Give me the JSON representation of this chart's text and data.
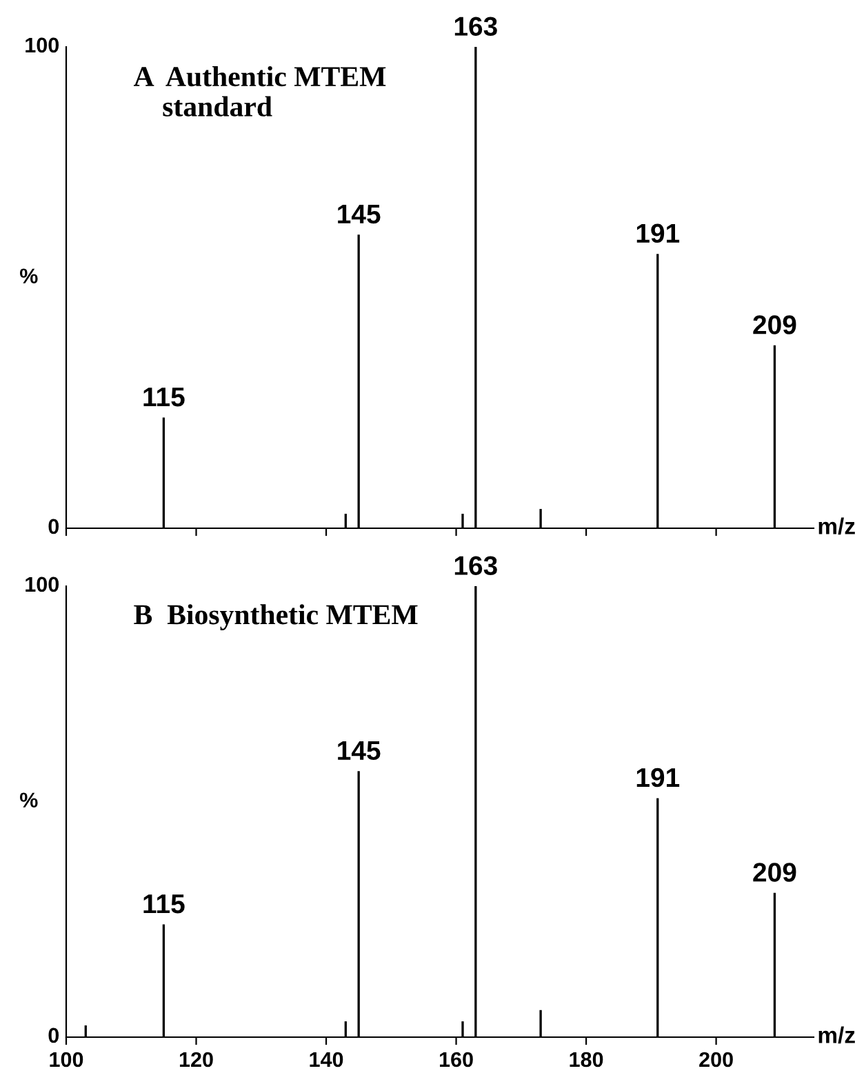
{
  "chart_data": [
    {
      "type": "bar",
      "title": "A  Authentic MTEM\n    standard",
      "xlabel": "m/z",
      "ylabel": "%",
      "x": [
        115,
        143,
        145,
        161,
        163,
        173,
        191,
        209
      ],
      "values": [
        23,
        3,
        61,
        3,
        100,
        4,
        57,
        38
      ],
      "color": "#000000",
      "xlim": [
        100,
        215
      ],
      "xticks": [
        100,
        120,
        140,
        160,
        180,
        200
      ],
      "ylim": [
        0,
        100
      ],
      "yticks": [
        0,
        100
      ],
      "tick_labels": "y",
      "grid": false,
      "legend": false,
      "annotations": [
        {
          "text": "115",
          "x": 115,
          "y": 23
        },
        {
          "text": "145",
          "x": 145,
          "y": 61
        },
        {
          "text": "163",
          "x": 163,
          "y": 100
        },
        {
          "text": "191",
          "x": 191,
          "y": 57
        },
        {
          "text": "209",
          "x": 209,
          "y": 38
        }
      ]
    },
    {
      "type": "bar",
      "title": "B  Biosynthetic MTEM",
      "xlabel": "m/z",
      "ylabel": "%",
      "x": [
        103,
        115,
        143,
        145,
        161,
        163,
        173,
        191,
        209
      ],
      "values": [
        2.6,
        25,
        3.5,
        59,
        3.5,
        100,
        6,
        53,
        32
      ],
      "color": "#000000",
      "xlim": [
        100,
        215
      ],
      "xticks": [
        100,
        120,
        140,
        160,
        180,
        200
      ],
      "ylim": [
        0,
        100
      ],
      "yticks": [
        0,
        100
      ],
      "grid": false,
      "legend": false,
      "annotations": [
        {
          "text": "115",
          "x": 115,
          "y": 25
        },
        {
          "text": "145",
          "x": 145,
          "y": 59
        },
        {
          "text": "163",
          "x": 163,
          "y": 100
        },
        {
          "text": "191",
          "x": 191,
          "y": 53
        },
        {
          "text": "209",
          "x": 209,
          "y": 32
        }
      ]
    }
  ]
}
